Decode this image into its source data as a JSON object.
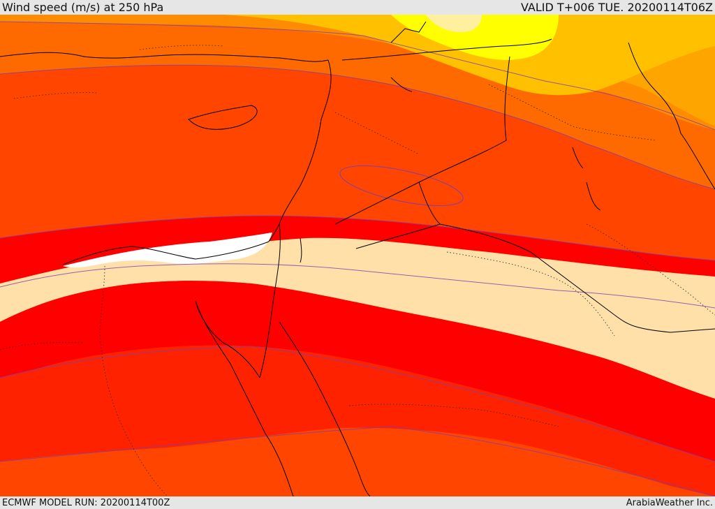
{
  "header": {
    "title": "Wind speed (m/s) at 250 hPa",
    "valid_time": "VALID T+006 TUE. 20200114T06Z"
  },
  "footer": {
    "model_run": "ECMWF MODEL RUN: 20200114T00Z",
    "credit": "ArabiaWeather Inc."
  },
  "map": {
    "colors": {
      "band_35_40": "#ff8c00",
      "band_30_35": "#ff6a00",
      "band_25_30": "#ff4500",
      "band_20_25": "#ff2200",
      "band_15_20": "#ff0000",
      "band_10_15": "#ffe0a8",
      "band_0_10": "#ffffff",
      "band_40_45": "#ffa500",
      "band_45_50": "#ffc000",
      "band_50_55": "#ffff00",
      "band_55_60": "#fff0a0",
      "coastline": "#000000",
      "contour": "#7b3fb0"
    }
  }
}
